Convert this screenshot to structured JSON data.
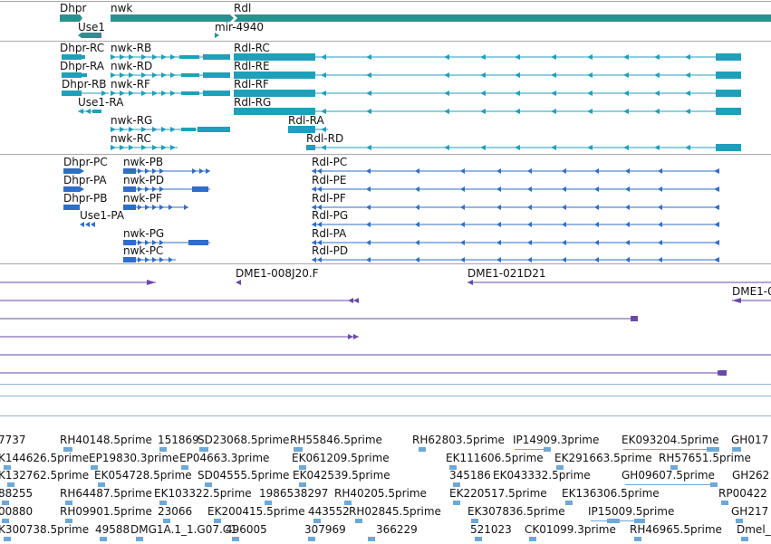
{
  "genes": [
    {
      "label": "Dhpr"
    },
    {
      "label": "nwk"
    },
    {
      "label": "Rdl"
    },
    {
      "label": "Use1"
    },
    {
      "label": "mir-4940"
    }
  ],
  "transcripts": [
    {
      "label": "Dhpr-RC"
    },
    {
      "label": "nwk-RB"
    },
    {
      "label": "Rdl-RC"
    },
    {
      "label": "Dhpr-RA"
    },
    {
      "label": "nwk-RD"
    },
    {
      "label": "Rdl-RE"
    },
    {
      "label": "Dhpr-RB"
    },
    {
      "label": "nwk-RF"
    },
    {
      "label": "Rdl-RF"
    },
    {
      "label": "Use1-RA"
    },
    {
      "label": "Rdl-RG"
    },
    {
      "label": "nwk-RG"
    },
    {
      "label": "Rdl-RA"
    },
    {
      "label": "nwk-RC"
    },
    {
      "label": "Rdl-RD"
    }
  ],
  "proteins": [
    {
      "label": "Dhpr-PC"
    },
    {
      "label": "nwk-PB"
    },
    {
      "label": "Rdl-PC"
    },
    {
      "label": "Dhpr-PA"
    },
    {
      "label": "nwk-PD"
    },
    {
      "label": "Rdl-PE"
    },
    {
      "label": "Dhpr-PB"
    },
    {
      "label": "nwk-PF"
    },
    {
      "label": "Rdl-PF"
    },
    {
      "label": "Use1-PA"
    },
    {
      "label": "Rdl-PG"
    },
    {
      "label": "nwk-PG"
    },
    {
      "label": "Rdl-PA"
    },
    {
      "label": "nwk-PC"
    },
    {
      "label": "Rdl-PD"
    }
  ],
  "clones": [
    {
      "label": "DME1-008J20.F"
    },
    {
      "label": "DME1-021D21"
    },
    {
      "label": "DME1-0"
    }
  ],
  "ests": [
    {
      "label": "7737"
    },
    {
      "label": "RH40148.5prime"
    },
    {
      "label": "151869"
    },
    {
      "label": "SD23068.5prime"
    },
    {
      "label": "RH55846.5prime"
    },
    {
      "label": "RH62803.5prime"
    },
    {
      "label": "IP14909.3prime"
    },
    {
      "label": "EK093204.5prime"
    },
    {
      "label": "GH017"
    },
    {
      "label": "K144626.5prime"
    },
    {
      "label": "EP19830.3prime"
    },
    {
      "label": "EP04663.3prime"
    },
    {
      "label": "EK061209.5prime"
    },
    {
      "label": "EK111606.5prime"
    },
    {
      "label": "EK291663.5prime"
    },
    {
      "label": "RH57651.5prime"
    },
    {
      "label": "K132762.5prime"
    },
    {
      "label": "EK054728.5prime"
    },
    {
      "label": "SD04555.5prime"
    },
    {
      "label": "EK042539.5prime"
    },
    {
      "label": "345186"
    },
    {
      "label": "EK043332.5prime"
    },
    {
      "label": "GH09607.5prime"
    },
    {
      "label": "GH262"
    },
    {
      "label": "88255"
    },
    {
      "label": "RH64487.5prime"
    },
    {
      "label": "EK103322.5prime"
    },
    {
      "label": "1986538297"
    },
    {
      "label": "RH40205.5prime"
    },
    {
      "label": "EK220517.5prime"
    },
    {
      "label": "EK136306.5prime"
    },
    {
      "label": "RP00422"
    },
    {
      "label": "00880"
    },
    {
      "label": "RH09901.5prime"
    },
    {
      "label": "23066"
    },
    {
      "label": "EK200415.5prime"
    },
    {
      "label": "443552"
    },
    {
      "label": "RH02845.5prime"
    },
    {
      "label": "EK307836.5prime"
    },
    {
      "label": "IP15009.5prime"
    },
    {
      "label": "GH217"
    },
    {
      "label": "K300738.5prime"
    },
    {
      "label": "49588"
    },
    {
      "label": "DMG1A.1_1.G07.C1"
    },
    {
      "label": "496005"
    },
    {
      "label": "307969"
    },
    {
      "label": "366229"
    },
    {
      "label": "521023"
    },
    {
      "label": "CK01099.3prime"
    },
    {
      "label": "RH46965.5prime"
    },
    {
      "label": "Dmel_c"
    }
  ],
  "colors": {
    "gene": "#2a9090",
    "transcript": "#1ea0ba",
    "protein": "#2f6dc8",
    "clone": "#6a4aa8",
    "est": "#6ea8d6",
    "separator": "#a8a8a8"
  }
}
